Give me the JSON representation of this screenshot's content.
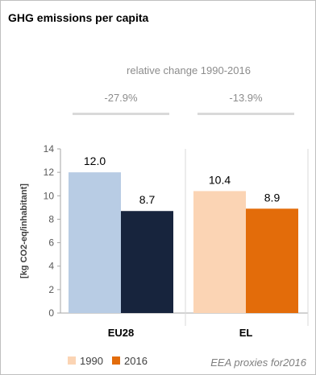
{
  "chart_data": {
    "type": "bar",
    "title": "GHG emissions per capita",
    "subtitle": "relative change 1990-2016",
    "ylabel": "[kg CO2-eq/inhabitant]",
    "ylim": [
      0,
      14
    ],
    "yticks": [
      0,
      2,
      4,
      6,
      8,
      10,
      12,
      14
    ],
    "categories": [
      "EU28",
      "EL"
    ],
    "groups": [
      {
        "category": "EU28",
        "change": "-27.9%",
        "bars": [
          {
            "year": "1990",
            "value": 12.0,
            "label": "12.0",
            "color": "#b8cce4"
          },
          {
            "year": "2016",
            "value": 8.7,
            "label": "8.7",
            "color": "#17243d"
          }
        ]
      },
      {
        "category": "EL",
        "change": "-13.9%",
        "bars": [
          {
            "year": "1990",
            "value": 10.4,
            "label": "10.4",
            "color": "#fbd4b4"
          },
          {
            "year": "2016",
            "value": 8.9,
            "label": "8.9",
            "color": "#e36c0a"
          }
        ]
      }
    ],
    "legend": [
      {
        "name": "1990",
        "color": "#fbd4b4"
      },
      {
        "name": "2016",
        "color": "#e36c0a"
      }
    ],
    "legend_position": "bottom-left",
    "grid": false,
    "source": "EEA proxies  for2016"
  }
}
